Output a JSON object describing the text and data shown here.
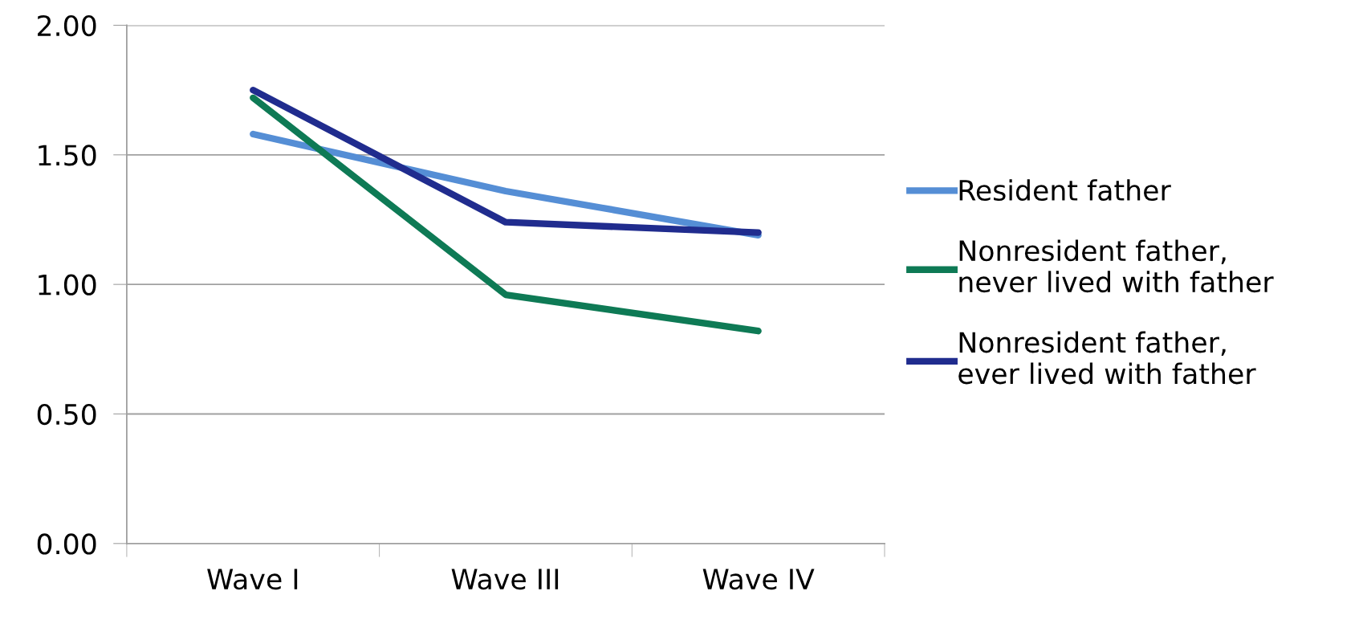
{
  "chart_data": {
    "type": "line",
    "categories": [
      "Wave I",
      "Wave III",
      "Wave IV"
    ],
    "series": [
      {
        "name": "Resident father",
        "color": "#558ed5",
        "values": [
          1.58,
          1.36,
          1.19
        ]
      },
      {
        "name": "Nonresident father,\nnever lived with father",
        "color": "#0e7a55",
        "values": [
          1.72,
          0.96,
          0.82
        ]
      },
      {
        "name": "Nonresident father,\never lived with father",
        "color": "#202c8e",
        "values": [
          1.75,
          1.24,
          1.2
        ]
      }
    ],
    "ylim": [
      0,
      2
    ],
    "yticks": [
      {
        "value": 0,
        "label": "0.00"
      },
      {
        "value": 0.5,
        "label": "0.50"
      },
      {
        "value": 1,
        "label": "1.00"
      },
      {
        "value": 1.5,
        "label": "1.50"
      },
      {
        "value": 2,
        "label": "2.00"
      }
    ],
    "grid": "y",
    "legend": "right",
    "marker": "none",
    "line_style": "solid"
  }
}
